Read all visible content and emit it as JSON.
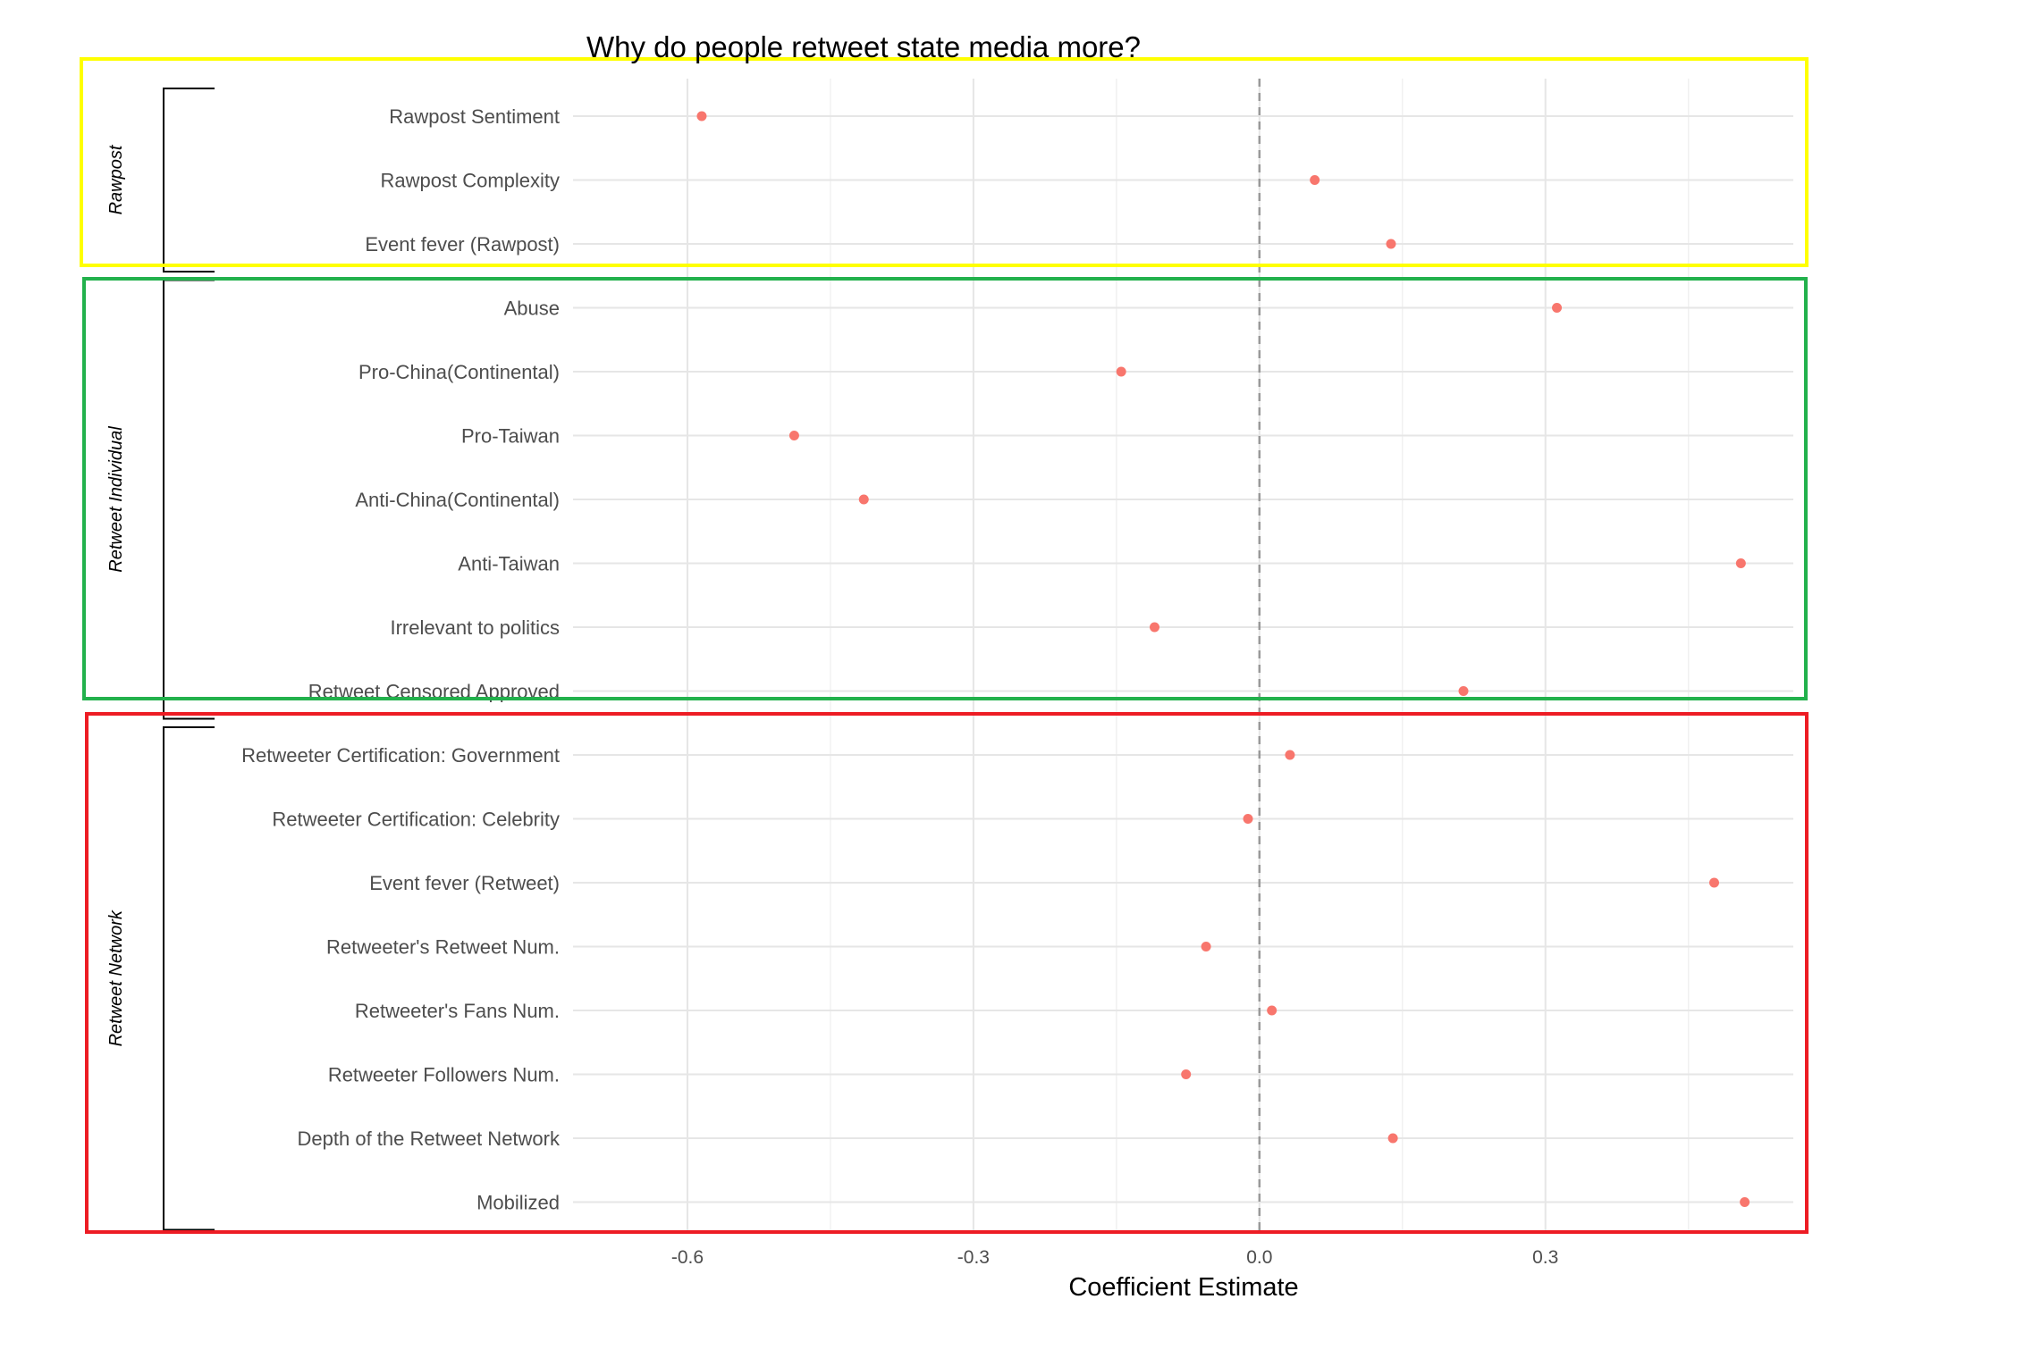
{
  "chart_data": {
    "type": "scatter",
    "title": "Why do people retweet state media more?",
    "xlabel": "Coefficient Estimate",
    "ylabel": "",
    "xlim": [
      -0.72,
      0.56
    ],
    "xticks": [
      -0.6,
      -0.3,
      0.0,
      0.3
    ],
    "xtick_labels": [
      "-0.6",
      "-0.3",
      "0.0",
      "0.3"
    ],
    "reference_line_x": 0.0,
    "grid": true,
    "point_color": "#f8766d",
    "groups": [
      {
        "name": "Rawpost",
        "box_color": "#ffff00",
        "items": [
          {
            "label": "Rawpost Sentiment",
            "value": -0.585
          },
          {
            "label": "Rawpost Complexity",
            "value": 0.058
          },
          {
            "label": "Event fever (Rawpost)",
            "value": 0.138
          }
        ]
      },
      {
        "name": "Retweet Individual",
        "box_color": "#22b14c",
        "items": [
          {
            "label": "Abuse",
            "value": 0.312
          },
          {
            "label": "Pro-China(Continental)",
            "value": -0.145
          },
          {
            "label": "Pro-Taiwan",
            "value": -0.488
          },
          {
            "label": "Anti-China(Continental)",
            "value": -0.415
          },
          {
            "label": "Anti-Taiwan",
            "value": 0.505
          },
          {
            "label": "Irrelevant to politics",
            "value": -0.11
          },
          {
            "label": "Retweet Censored Approved",
            "value": 0.214
          }
        ]
      },
      {
        "name": "Retweet Network",
        "box_color": "#ed1c24",
        "items": [
          {
            "label": "Retweeter Certification: Government",
            "value": 0.032
          },
          {
            "label": "Retweeter Certification: Celebrity",
            "value": -0.012
          },
          {
            "label": "Event fever (Retweet)",
            "value": 0.477
          },
          {
            "label": "Retweeter's Retweet Num.",
            "value": -0.056
          },
          {
            "label": "Retweeter's Fans Num.",
            "value": 0.013
          },
          {
            "label": "Retweeter Followers Num.",
            "value": -0.077
          },
          {
            "label": "Depth of the Retweet Network",
            "value": 0.14
          },
          {
            "label": "Mobilized",
            "value": 0.509
          }
        ]
      }
    ]
  }
}
